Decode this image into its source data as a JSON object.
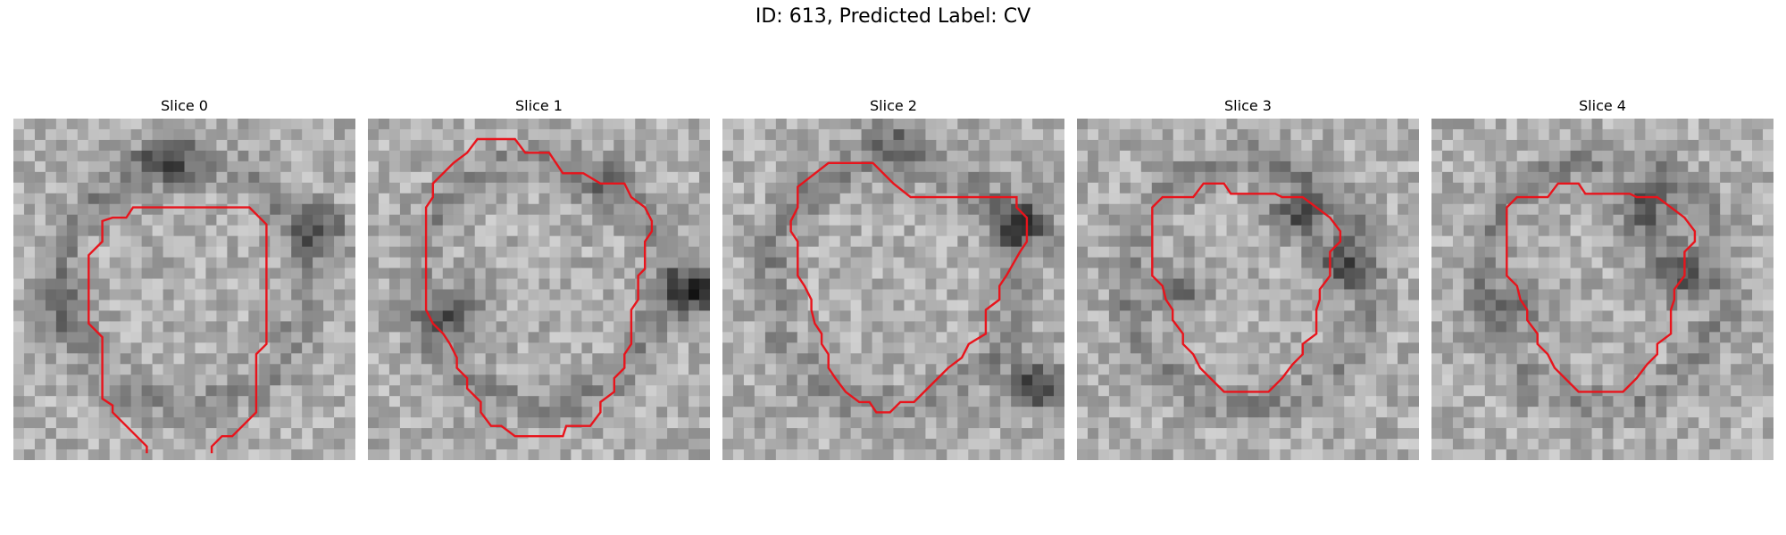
{
  "figure": {
    "title": "ID: 613, Predicted Label: CV"
  },
  "colors": {
    "contour": "#e8141c",
    "background": "#ffffff"
  },
  "slices": [
    {
      "title": "Slice 0",
      "seed": 11,
      "dark": [
        [
          0.45,
          0.12,
          0.55
        ],
        [
          0.9,
          0.33,
          0.45
        ],
        [
          0.15,
          0.55,
          0.25
        ]
      ],
      "contour": [
        [
          0.39,
          0.98
        ],
        [
          0.39,
          0.96
        ],
        [
          0.29,
          0.86
        ],
        [
          0.29,
          0.84
        ],
        [
          0.26,
          0.82
        ],
        [
          0.26,
          0.64
        ],
        [
          0.22,
          0.6
        ],
        [
          0.22,
          0.4
        ],
        [
          0.26,
          0.36
        ],
        [
          0.26,
          0.3
        ],
        [
          0.29,
          0.29
        ],
        [
          0.33,
          0.29
        ],
        [
          0.35,
          0.26
        ],
        [
          0.69,
          0.26
        ],
        [
          0.74,
          0.31
        ],
        [
          0.74,
          0.66
        ],
        [
          0.71,
          0.69
        ],
        [
          0.71,
          0.86
        ],
        [
          0.64,
          0.93
        ],
        [
          0.61,
          0.93
        ],
        [
          0.58,
          0.96
        ],
        [
          0.58,
          0.98
        ]
      ]
    },
    {
      "title": "Slice 1",
      "seed": 27,
      "dark": [
        [
          0.25,
          0.58,
          0.6
        ],
        [
          0.95,
          0.5,
          0.8
        ],
        [
          0.7,
          0.2,
          0.3
        ]
      ],
      "contour": [
        [
          0.32,
          0.06
        ],
        [
          0.43,
          0.06
        ],
        [
          0.46,
          0.1
        ],
        [
          0.53,
          0.1
        ],
        [
          0.57,
          0.16
        ],
        [
          0.63,
          0.16
        ],
        [
          0.68,
          0.19
        ],
        [
          0.75,
          0.19
        ],
        [
          0.77,
          0.23
        ],
        [
          0.81,
          0.26
        ],
        [
          0.83,
          0.3
        ],
        [
          0.83,
          0.33
        ],
        [
          0.81,
          0.36
        ],
        [
          0.81,
          0.44
        ],
        [
          0.79,
          0.46
        ],
        [
          0.79,
          0.53
        ],
        [
          0.77,
          0.56
        ],
        [
          0.77,
          0.66
        ],
        [
          0.75,
          0.69
        ],
        [
          0.75,
          0.73
        ],
        [
          0.72,
          0.76
        ],
        [
          0.72,
          0.8
        ],
        [
          0.68,
          0.83
        ],
        [
          0.68,
          0.86
        ],
        [
          0.65,
          0.9
        ],
        [
          0.58,
          0.9
        ],
        [
          0.57,
          0.93
        ],
        [
          0.43,
          0.93
        ],
        [
          0.39,
          0.9
        ],
        [
          0.36,
          0.9
        ],
        [
          0.33,
          0.86
        ],
        [
          0.33,
          0.83
        ],
        [
          0.29,
          0.79
        ],
        [
          0.29,
          0.76
        ],
        [
          0.26,
          0.73
        ],
        [
          0.26,
          0.7
        ],
        [
          0.24,
          0.66
        ],
        [
          0.22,
          0.63
        ],
        [
          0.19,
          0.6
        ],
        [
          0.17,
          0.56
        ],
        [
          0.17,
          0.26
        ],
        [
          0.19,
          0.23
        ],
        [
          0.19,
          0.19
        ],
        [
          0.22,
          0.16
        ],
        [
          0.25,
          0.13
        ],
        [
          0.29,
          0.1
        ]
      ]
    },
    {
      "title": "Slice 2",
      "seed": 43,
      "dark": [
        [
          0.88,
          0.3,
          0.7
        ],
        [
          0.92,
          0.78,
          0.65
        ],
        [
          0.5,
          0.05,
          0.35
        ]
      ],
      "contour": [
        [
          0.31,
          0.13
        ],
        [
          0.44,
          0.13
        ],
        [
          0.5,
          0.19
        ],
        [
          0.55,
          0.23
        ],
        [
          0.58,
          0.23
        ],
        [
          0.6,
          0.23
        ],
        [
          0.86,
          0.23
        ],
        [
          0.86,
          0.26
        ],
        [
          0.89,
          0.29
        ],
        [
          0.89,
          0.36
        ],
        [
          0.87,
          0.39
        ],
        [
          0.83,
          0.46
        ],
        [
          0.81,
          0.49
        ],
        [
          0.81,
          0.53
        ],
        [
          0.77,
          0.56
        ],
        [
          0.77,
          0.63
        ],
        [
          0.72,
          0.66
        ],
        [
          0.7,
          0.7
        ],
        [
          0.66,
          0.73
        ],
        [
          0.62,
          0.77
        ],
        [
          0.56,
          0.83
        ],
        [
          0.52,
          0.83
        ],
        [
          0.49,
          0.86
        ],
        [
          0.45,
          0.86
        ],
        [
          0.43,
          0.83
        ],
        [
          0.4,
          0.83
        ],
        [
          0.36,
          0.8
        ],
        [
          0.33,
          0.76
        ],
        [
          0.31,
          0.73
        ],
        [
          0.31,
          0.69
        ],
        [
          0.29,
          0.66
        ],
        [
          0.29,
          0.63
        ],
        [
          0.27,
          0.6
        ],
        [
          0.26,
          0.56
        ],
        [
          0.26,
          0.53
        ],
        [
          0.24,
          0.49
        ],
        [
          0.22,
          0.46
        ],
        [
          0.22,
          0.36
        ],
        [
          0.2,
          0.33
        ],
        [
          0.2,
          0.3
        ],
        [
          0.22,
          0.26
        ],
        [
          0.22,
          0.2
        ]
      ]
    },
    {
      "title": "Slice 3",
      "seed": 59,
      "dark": [
        [
          0.65,
          0.28,
          0.6
        ],
        [
          0.78,
          0.43,
          0.55
        ],
        [
          0.3,
          0.5,
          0.4
        ]
      ],
      "contour": [
        [
          0.22,
          0.26
        ],
        [
          0.25,
          0.23
        ],
        [
          0.34,
          0.23
        ],
        [
          0.37,
          0.19
        ],
        [
          0.43,
          0.19
        ],
        [
          0.45,
          0.22
        ],
        [
          0.58,
          0.22
        ],
        [
          0.6,
          0.23
        ],
        [
          0.66,
          0.23
        ],
        [
          0.7,
          0.26
        ],
        [
          0.74,
          0.29
        ],
        [
          0.77,
          0.33
        ],
        [
          0.77,
          0.36
        ],
        [
          0.74,
          0.39
        ],
        [
          0.74,
          0.46
        ],
        [
          0.71,
          0.5
        ],
        [
          0.71,
          0.53
        ],
        [
          0.7,
          0.56
        ],
        [
          0.7,
          0.63
        ],
        [
          0.66,
          0.66
        ],
        [
          0.66,
          0.69
        ],
        [
          0.63,
          0.72
        ],
        [
          0.6,
          0.76
        ],
        [
          0.56,
          0.8
        ],
        [
          0.43,
          0.8
        ],
        [
          0.39,
          0.76
        ],
        [
          0.36,
          0.73
        ],
        [
          0.34,
          0.69
        ],
        [
          0.31,
          0.66
        ],
        [
          0.31,
          0.63
        ],
        [
          0.28,
          0.59
        ],
        [
          0.28,
          0.56
        ],
        [
          0.26,
          0.53
        ],
        [
          0.25,
          0.49
        ],
        [
          0.22,
          0.46
        ],
        [
          0.22,
          0.3
        ]
      ]
    },
    {
      "title": "Slice 4",
      "seed": 71,
      "dark": [
        [
          0.62,
          0.27,
          0.55
        ],
        [
          0.72,
          0.45,
          0.6
        ],
        [
          0.25,
          0.55,
          0.35
        ]
      ],
      "contour": [
        [
          0.22,
          0.26
        ],
        [
          0.25,
          0.23
        ],
        [
          0.34,
          0.23
        ],
        [
          0.37,
          0.19
        ],
        [
          0.43,
          0.19
        ],
        [
          0.45,
          0.22
        ],
        [
          0.58,
          0.22
        ],
        [
          0.6,
          0.23
        ],
        [
          0.66,
          0.23
        ],
        [
          0.7,
          0.26
        ],
        [
          0.74,
          0.29
        ],
        [
          0.77,
          0.33
        ],
        [
          0.77,
          0.36
        ],
        [
          0.74,
          0.39
        ],
        [
          0.74,
          0.46
        ],
        [
          0.71,
          0.5
        ],
        [
          0.71,
          0.53
        ],
        [
          0.7,
          0.56
        ],
        [
          0.7,
          0.63
        ],
        [
          0.66,
          0.66
        ],
        [
          0.66,
          0.69
        ],
        [
          0.63,
          0.72
        ],
        [
          0.6,
          0.76
        ],
        [
          0.56,
          0.8
        ],
        [
          0.43,
          0.8
        ],
        [
          0.39,
          0.76
        ],
        [
          0.36,
          0.73
        ],
        [
          0.34,
          0.69
        ],
        [
          0.31,
          0.66
        ],
        [
          0.31,
          0.63
        ],
        [
          0.28,
          0.59
        ],
        [
          0.28,
          0.56
        ],
        [
          0.26,
          0.53
        ],
        [
          0.25,
          0.49
        ],
        [
          0.22,
          0.46
        ],
        [
          0.22,
          0.3
        ]
      ]
    }
  ]
}
